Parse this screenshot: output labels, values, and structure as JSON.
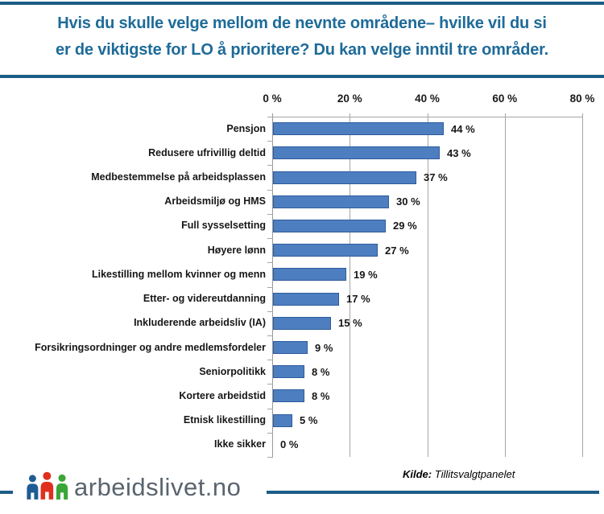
{
  "title": {
    "lines": [
      "Hvis du skulle velge mellom de nevnte områdene– hvilke vil du si",
      "er de viktigste for LO å prioritere? Du kan velge inntil tre områder."
    ]
  },
  "chart_data": {
    "type": "bar",
    "orientation": "horizontal",
    "categories": [
      "Pensjon",
      "Redusere ufrivillig deltid",
      "Medbestemmelse på arbeidsplassen",
      "Arbeidsmiljø og HMS",
      "Full sysselsetting",
      "Høyere lønn",
      "Likestilling mellom kvinner og menn",
      "Etter- og videreutdanning",
      "Inkluderende arbeidsliv (IA)",
      "Forsikringsordninger og andre medlemsfordeler",
      "Seniorpolitikk",
      "Kortere arbeidstid",
      "Etnisk likestilling",
      "Ikke sikker"
    ],
    "values": [
      44,
      43,
      37,
      30,
      29,
      27,
      19,
      17,
      15,
      9,
      8,
      8,
      5,
      0
    ],
    "value_labels": [
      "44 %",
      "43 %",
      "37 %",
      "30 %",
      "29 %",
      "27 %",
      "19 %",
      "17 %",
      "15 %",
      "9 %",
      "8 %",
      "8 %",
      "5 %",
      "0 %"
    ],
    "axis_ticks": [
      "0 %",
      "20 %",
      "40 %",
      "60 %",
      "80 %"
    ],
    "axis_tick_values": [
      0,
      20,
      40,
      60,
      80
    ],
    "xlim": [
      0,
      80
    ],
    "grid": true,
    "legend": "none",
    "bar_fill": "#4d7ebf",
    "bar_border": "#2e5c9e",
    "gridline_color": "#a6a6a6"
  },
  "source": {
    "label": "Kilde:",
    "text": "Tillitsvalgtpanelet"
  },
  "footer": {
    "logo_text": "arbeidslivet.no",
    "logo_icon": "three-people-icon",
    "logo_person_colors": {
      "left": "#1e5b94",
      "middle": "#e0301e",
      "right": "#3aa637"
    },
    "rule_color": "#1c5d86"
  },
  "colors": {
    "title_text": "#1e6b99",
    "rule": "#1c5d86",
    "label_text": "#161616",
    "logo_text": "#5a646e"
  }
}
